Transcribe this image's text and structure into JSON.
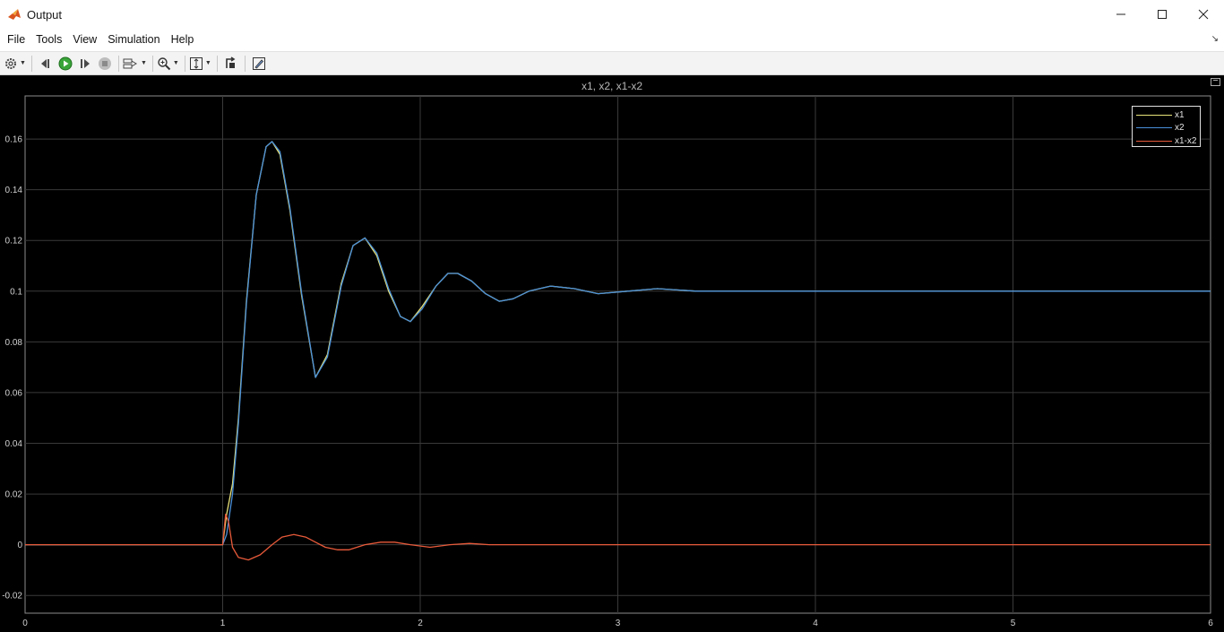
{
  "window": {
    "title": "Output",
    "minimize_icon": "minimize-icon",
    "maximize_icon": "maximize-icon",
    "close_icon": "close-icon"
  },
  "menu": [
    "File",
    "Tools",
    "View",
    "Simulation",
    "Help"
  ],
  "toolbar": {
    "icons": [
      "gear-icon",
      "step-back-icon",
      "run-icon",
      "step-forward-icon",
      "stop-icon",
      "signal-select-icon",
      "zoom-icon",
      "fit-icon",
      "highlight-icon",
      "style-icon"
    ]
  },
  "plot": {
    "title": "x1, x2, x1-x2"
  },
  "chart_data": {
    "type": "line",
    "title": "x1, x2, x1-x2",
    "xlabel": "",
    "ylabel": "",
    "xlim": [
      0,
      6
    ],
    "ylim": [
      -0.027,
      0.177
    ],
    "x_ticks": [
      "0",
      "1",
      "2",
      "3",
      "4",
      "5",
      "6"
    ],
    "y_ticks": [
      "-0.02",
      "0",
      "0.02",
      "0.04",
      "0.06",
      "0.08",
      "0.1",
      "0.12",
      "0.14",
      "0.16"
    ],
    "grid": true,
    "legend": "top-right",
    "background": "#000000",
    "series": [
      {
        "name": "x1",
        "color": "#e8e27a",
        "x": [
          0,
          1.0,
          1.02,
          1.05,
          1.08,
          1.12,
          1.17,
          1.22,
          1.25,
          1.29,
          1.34,
          1.4,
          1.47,
          1.53,
          1.6,
          1.66,
          1.72,
          1.78,
          1.84,
          1.9,
          1.95,
          2.01,
          2.08,
          2.14,
          2.19,
          2.26,
          2.33,
          2.4,
          2.47,
          2.55,
          2.66,
          2.78,
          2.9,
          3.05,
          3.2,
          3.4,
          3.63,
          3.9,
          6.0
        ],
        "y": [
          0,
          0,
          0.012,
          0.024,
          0.05,
          0.096,
          0.138,
          0.157,
          0.159,
          0.154,
          0.132,
          0.098,
          0.066,
          0.075,
          0.103,
          0.118,
          0.121,
          0.114,
          0.1,
          0.09,
          0.088,
          0.094,
          0.102,
          0.107,
          0.107,
          0.104,
          0.099,
          0.096,
          0.097,
          0.1,
          0.102,
          0.101,
          0.099,
          0.1,
          0.101,
          0.1,
          0.1,
          0.1,
          0.1
        ]
      },
      {
        "name": "x2",
        "color": "#4a90d9",
        "x": [
          0,
          1.0,
          1.02,
          1.05,
          1.08,
          1.12,
          1.17,
          1.22,
          1.25,
          1.29,
          1.34,
          1.4,
          1.47,
          1.53,
          1.6,
          1.66,
          1.72,
          1.78,
          1.84,
          1.9,
          1.95,
          2.01,
          2.08,
          2.14,
          2.19,
          2.26,
          2.33,
          2.4,
          2.47,
          2.55,
          2.66,
          2.78,
          2.9,
          3.05,
          3.2,
          3.4,
          3.63,
          3.9,
          6.0
        ],
        "y": [
          0,
          0,
          0.004,
          0.02,
          0.048,
          0.095,
          0.138,
          0.157,
          0.159,
          0.155,
          0.133,
          0.099,
          0.066,
          0.074,
          0.102,
          0.118,
          0.121,
          0.115,
          0.101,
          0.09,
          0.088,
          0.093,
          0.102,
          0.107,
          0.107,
          0.104,
          0.099,
          0.096,
          0.097,
          0.1,
          0.102,
          0.101,
          0.099,
          0.1,
          0.101,
          0.1,
          0.1,
          0.1,
          0.1
        ]
      },
      {
        "name": "x1-x2",
        "color": "#e85a3a",
        "x": [
          0,
          1.0,
          1.015,
          1.03,
          1.05,
          1.08,
          1.13,
          1.19,
          1.25,
          1.3,
          1.36,
          1.42,
          1.47,
          1.52,
          1.58,
          1.64,
          1.72,
          1.8,
          1.87,
          1.95,
          2.05,
          2.15,
          2.25,
          2.35,
          2.5,
          2.7,
          3.0,
          6.0
        ],
        "y": [
          0,
          0,
          0.012,
          0.009,
          -0.001,
          -0.005,
          -0.006,
          -0.004,
          0.0,
          0.003,
          0.004,
          0.003,
          0.001,
          -0.001,
          -0.002,
          -0.002,
          0.0,
          0.001,
          0.001,
          0.0,
          -0.001,
          0.0,
          0.0005,
          0.0,
          0.0,
          0.0,
          0.0,
          0.0
        ]
      }
    ]
  }
}
